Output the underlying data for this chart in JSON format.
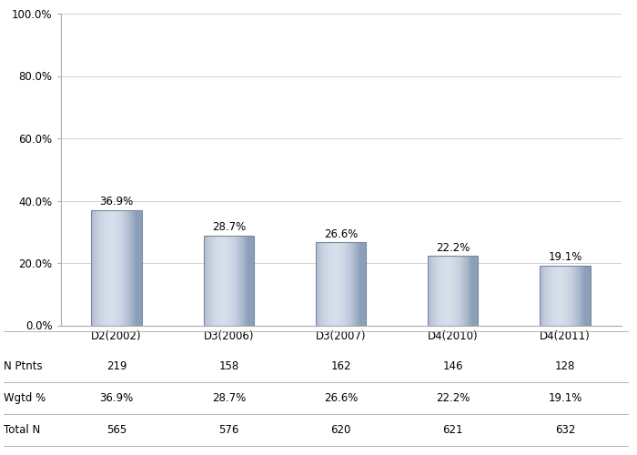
{
  "categories": [
    "D2(2002)",
    "D3(2006)",
    "D3(2007)",
    "D4(2010)",
    "D4(2011)"
  ],
  "values": [
    36.9,
    28.7,
    26.6,
    22.2,
    19.1
  ],
  "labels": [
    "36.9%",
    "28.7%",
    "26.6%",
    "22.2%",
    "19.1%"
  ],
  "n_ptnts": [
    219,
    158,
    162,
    146,
    128
  ],
  "wgtd_pct": [
    "36.9%",
    "28.7%",
    "26.6%",
    "22.2%",
    "19.1%"
  ],
  "total_n": [
    565,
    576,
    620,
    621,
    632
  ],
  "ylim": [
    0,
    100
  ],
  "yticks": [
    0,
    20,
    40,
    60,
    80,
    100
  ],
  "ytick_labels": [
    "0.0%",
    "20.0%",
    "40.0%",
    "60.0%",
    "80.0%",
    "100.0%"
  ],
  "background_color": "#ffffff",
  "grid_color": "#d0d0d0",
  "row_labels": [
    "N Ptnts",
    "Wgtd %",
    "Total N"
  ],
  "label_fontsize": 8.5,
  "tick_fontsize": 8.5,
  "table_fontsize": 8.5,
  "bar_width": 0.45
}
